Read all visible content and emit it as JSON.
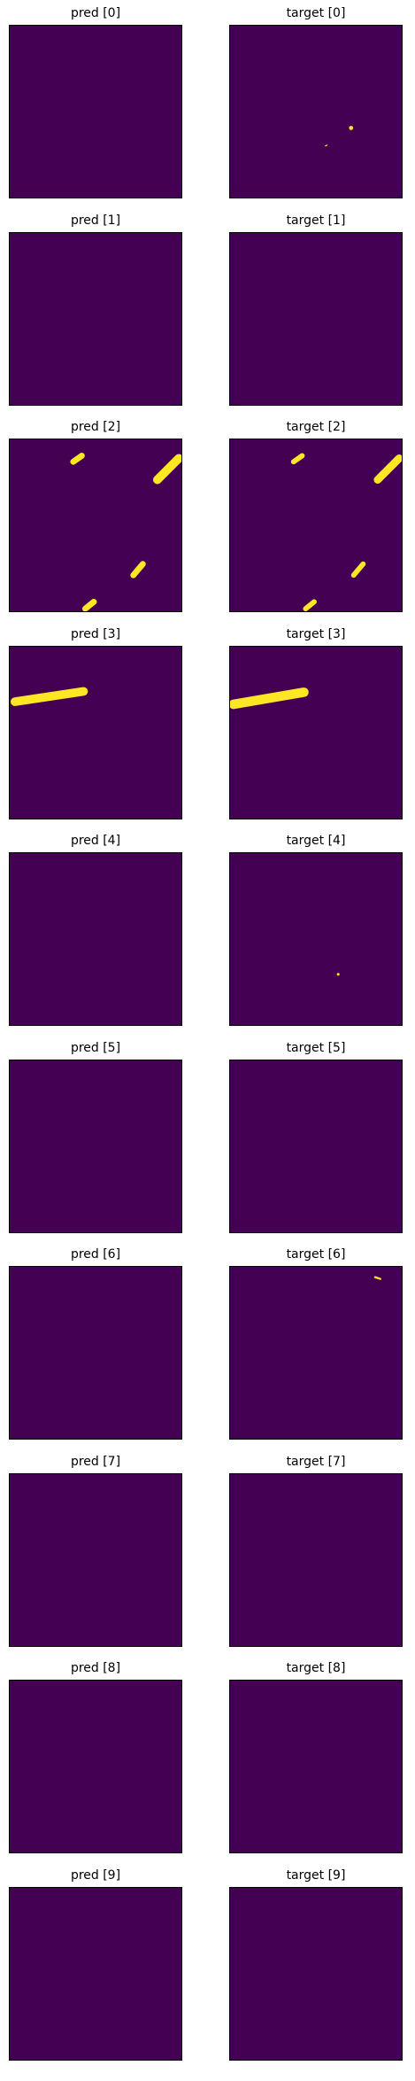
{
  "colors": {
    "background": "#440154",
    "mask": "#fde725",
    "frame": "#000000"
  },
  "chart_data": {
    "type": "heatmap",
    "description_free": true,
    "colormap": "viridis",
    "mask_coordinate_units": "fraction of image",
    "panels": [
      {
        "title": "pred [0]",
        "marks": []
      },
      {
        "title": "target [0]",
        "marks": [
          {
            "kind": "dot",
            "cx": 0.705,
            "cy": 0.595,
            "r": 0.012
          },
          {
            "kind": "line",
            "x1": 0.555,
            "y1": 0.7,
            "x2": 0.565,
            "y2": 0.695,
            "w": 0.006
          }
        ]
      },
      {
        "title": "pred [1]",
        "marks": []
      },
      {
        "title": "target [1]",
        "marks": []
      },
      {
        "title": "pred [2]",
        "marks": [
          {
            "kind": "line",
            "x1": 0.37,
            "y1": 0.13,
            "x2": 0.42,
            "y2": 0.095,
            "w": 0.035
          },
          {
            "kind": "line",
            "x1": 0.86,
            "y1": 0.235,
            "x2": 0.985,
            "y2": 0.11,
            "w": 0.05
          },
          {
            "kind": "line",
            "x1": 0.72,
            "y1": 0.79,
            "x2": 0.775,
            "y2": 0.725,
            "w": 0.035
          },
          {
            "kind": "line",
            "x1": 0.44,
            "y1": 0.985,
            "x2": 0.49,
            "y2": 0.945,
            "w": 0.035
          }
        ]
      },
      {
        "title": "target [2]",
        "marks": [
          {
            "kind": "line",
            "x1": 0.37,
            "y1": 0.13,
            "x2": 0.42,
            "y2": 0.095,
            "w": 0.03
          },
          {
            "kind": "line",
            "x1": 0.86,
            "y1": 0.235,
            "x2": 0.985,
            "y2": 0.11,
            "w": 0.045
          },
          {
            "kind": "line",
            "x1": 0.72,
            "y1": 0.79,
            "x2": 0.775,
            "y2": 0.725,
            "w": 0.03
          },
          {
            "kind": "line",
            "x1": 0.44,
            "y1": 0.985,
            "x2": 0.49,
            "y2": 0.945,
            "w": 0.03
          }
        ]
      },
      {
        "title": "pred [3]",
        "marks": [
          {
            "kind": "line",
            "x1": 0.03,
            "y1": 0.32,
            "x2": 0.43,
            "y2": 0.26,
            "w": 0.05
          }
        ]
      },
      {
        "title": "target [3]",
        "marks": [
          {
            "kind": "line",
            "x1": 0.02,
            "y1": 0.335,
            "x2": 0.43,
            "y2": 0.265,
            "w": 0.055
          }
        ]
      },
      {
        "title": "pred [4]",
        "marks": []
      },
      {
        "title": "target [4]",
        "marks": [
          {
            "kind": "dot",
            "cx": 0.63,
            "cy": 0.705,
            "r": 0.008
          }
        ]
      },
      {
        "title": "pred [5]",
        "marks": []
      },
      {
        "title": "target [5]",
        "marks": []
      },
      {
        "title": "pred [6]",
        "marks": []
      },
      {
        "title": "target [6]",
        "marks": [
          {
            "kind": "line",
            "x1": 0.845,
            "y1": 0.06,
            "x2": 0.875,
            "y2": 0.07,
            "w": 0.012
          }
        ]
      },
      {
        "title": "pred [7]",
        "marks": []
      },
      {
        "title": "target [7]",
        "marks": []
      },
      {
        "title": "pred [8]",
        "marks": []
      },
      {
        "title": "target [8]",
        "marks": []
      },
      {
        "title": "pred [9]",
        "marks": []
      },
      {
        "title": "target [9]",
        "marks": []
      }
    ]
  }
}
